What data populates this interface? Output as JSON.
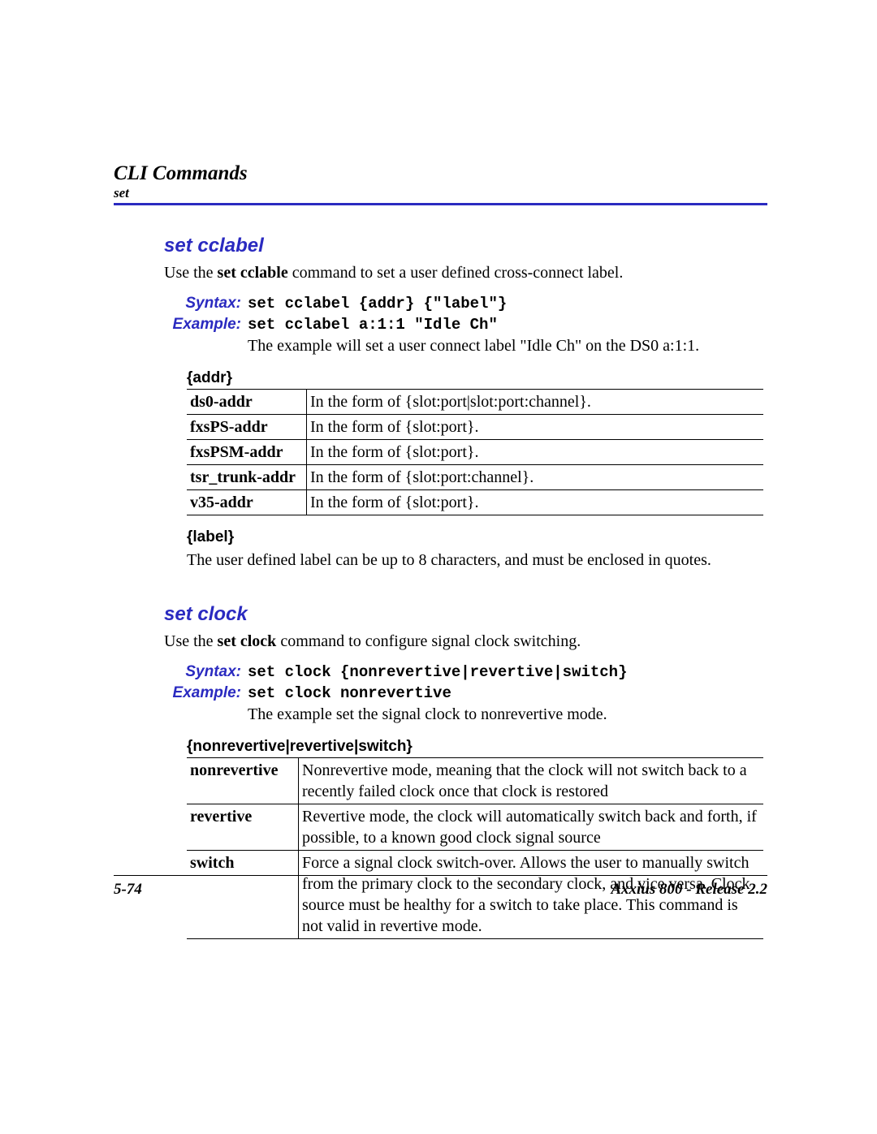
{
  "header": {
    "chapter_title": "CLI Commands",
    "subsection": "set",
    "rule_color": "#2a2ac0"
  },
  "section1": {
    "heading": "set cclabel",
    "intro_pre": "Use the ",
    "intro_bold": "set cclable",
    "intro_post": " command to set a user defined cross-connect label.",
    "syntax_label": "Syntax:",
    "syntax_code": "set cclabel {addr} {\"label\"}",
    "example_label": "Example:",
    "example_code": "set cclabel a:1:1 \"Idle Ch\"",
    "example_desc": "The example will set a user connect label \"Idle Ch\" on the DS0 a:1:1.",
    "param1_heading": "{addr}",
    "table": {
      "rows": [
        {
          "key": "ds0-addr",
          "desc": "In the form of {slot:port|slot:port:channel}."
        },
        {
          "key": "fxsPS-addr",
          "desc": "In the form of {slot:port}."
        },
        {
          "key": "fxsPSM-addr",
          "desc": "In the form of {slot:port}."
        },
        {
          "key": "tsr_trunk-addr",
          "desc": "In the form of {slot:port:channel}."
        },
        {
          "key": "v35-addr",
          "desc": "In the form of {slot:port}."
        }
      ]
    },
    "param2_heading": "{label}",
    "param2_note": "The user defined label can be up to 8 characters, and must be enclosed in quotes."
  },
  "section2": {
    "heading": "set clock",
    "intro_pre": "Use the ",
    "intro_bold": "set clock",
    "intro_post": " command to configure signal clock switching.",
    "syntax_label": "Syntax:",
    "syntax_code": "set clock {nonrevertive|revertive|switch}",
    "example_label": "Example:",
    "example_code": "set clock nonrevertive",
    "example_desc": "The example set the signal clock to nonrevertive mode.",
    "param_heading": "{nonrevertive|revertive|switch}",
    "table": {
      "rows": [
        {
          "key": "nonrevertive",
          "desc": "Nonrevertive mode, meaning that the clock will not switch back to a recently failed clock once that clock is restored"
        },
        {
          "key": "revertive",
          "desc": "Revertive mode, the clock will automatically switch back and forth, if possible, to a known good clock signal source"
        },
        {
          "key": "switch",
          "desc": "Force a signal clock switch-over. Allows the user to manually switch from the primary clock to the secondary clock, and vice versa. Clock source must be healthy for a switch to take place. This command is not valid in revertive mode."
        }
      ]
    }
  },
  "footer": {
    "page_number": "5-74",
    "product": "Axxius 800 - Release 2.2"
  },
  "colors": {
    "accent": "#2a2ac0",
    "text": "#000000",
    "background": "#ffffff"
  },
  "typography": {
    "body_font": "Times New Roman",
    "heading_font": "Arial",
    "mono_font": "Courier New",
    "body_size_pt": 15,
    "heading_size_pt": 18
  }
}
